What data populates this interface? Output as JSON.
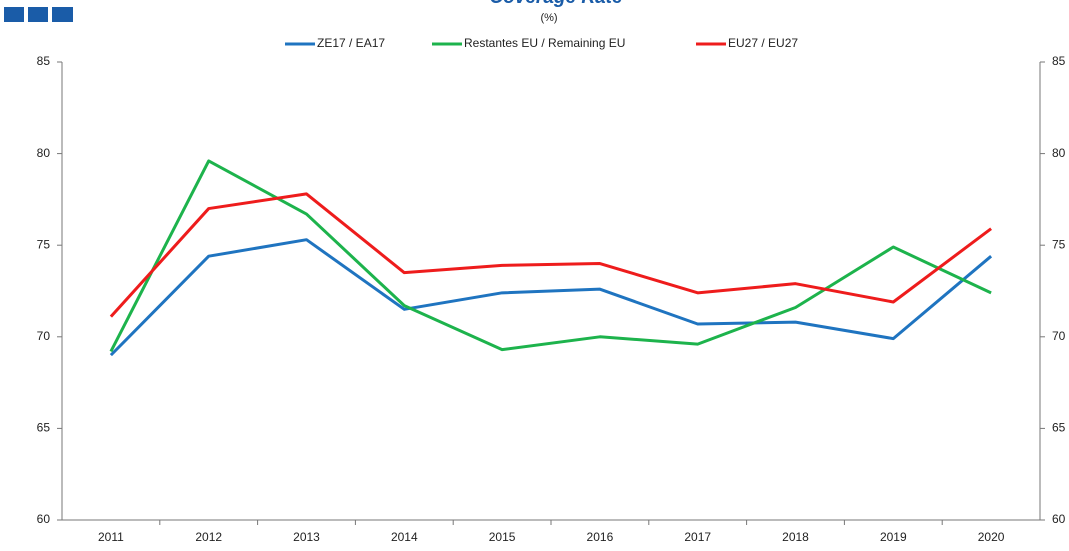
{
  "chart_data": {
    "type": "line",
    "title": "Coverage Rate",
    "subtitle": "(%)",
    "categories": [
      "2011",
      "2012",
      "2013",
      "2014",
      "2015",
      "2016",
      "2017",
      "2018",
      "2019",
      "2020"
    ],
    "series": [
      {
        "name": "ZE17 / EA17",
        "color": "#1f74c0",
        "values": [
          69.0,
          74.4,
          75.3,
          71.5,
          72.4,
          72.6,
          70.7,
          70.8,
          69.9,
          74.4
        ]
      },
      {
        "name": "Restantes EU / Remaining EU",
        "color": "#1db34c",
        "values": [
          69.2,
          79.6,
          76.7,
          71.7,
          69.3,
          70.0,
          69.6,
          71.6,
          74.9,
          72.4
        ]
      },
      {
        "name": "EU27 / EU27",
        "color": "#ee1c1c",
        "values": [
          71.1,
          77.0,
          77.8,
          73.5,
          73.9,
          74.0,
          72.4,
          72.9,
          71.9,
          75.9
        ]
      }
    ],
    "ylim": [
      60,
      85
    ],
    "yticks": [
      60,
      65,
      70,
      75,
      80,
      85
    ],
    "y2lim": [
      60,
      85
    ],
    "y2ticks": [
      60,
      65,
      70,
      75,
      80,
      85
    ],
    "legend": "top"
  }
}
